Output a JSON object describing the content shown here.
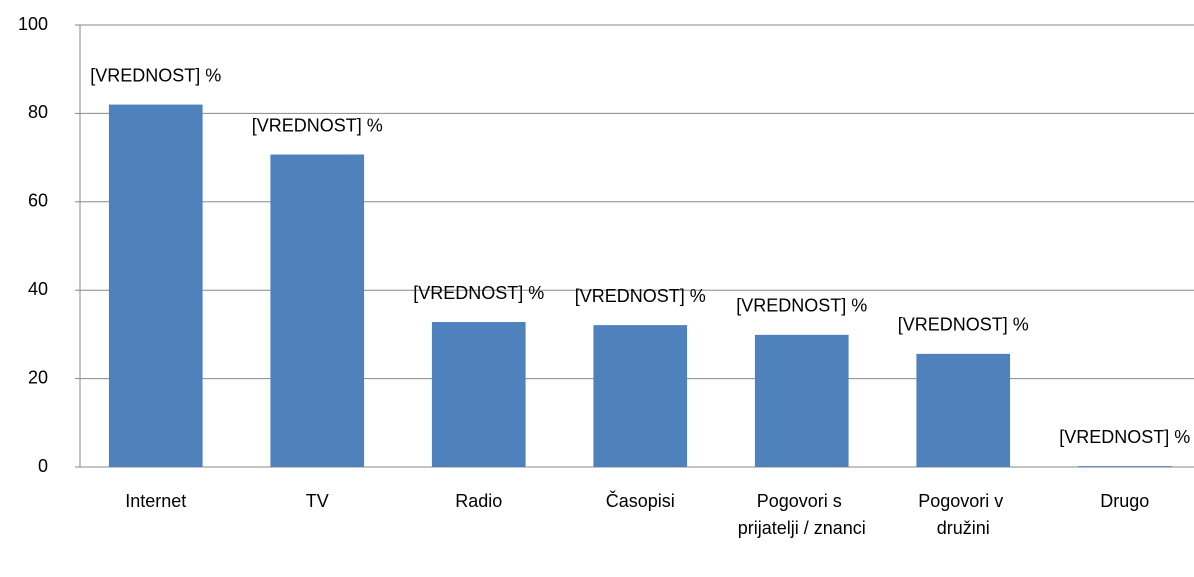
{
  "chart_data": {
    "type": "bar",
    "categories": [
      "Internet",
      "TV",
      "Radio",
      "Časopisi",
      "Pogovori s prijatelji / znanci",
      "Pogovori v družini",
      "Drugo"
    ],
    "values": [
      82,
      70.7,
      32.8,
      32.1,
      29.9,
      25.6,
      0.2
    ],
    "value_labels": [
      "[VREDNOST] %",
      "[VREDNOST] %",
      "[VREDNOST] %",
      "[VREDNOST] %",
      "[VREDNOST] %",
      "[VREDNOST] %",
      "[VREDNOST] %"
    ],
    "color": "#4f81bd",
    "ylim": [
      0,
      100
    ],
    "yticks": [
      0,
      20,
      40,
      60,
      80,
      100
    ],
    "grid": true
  }
}
